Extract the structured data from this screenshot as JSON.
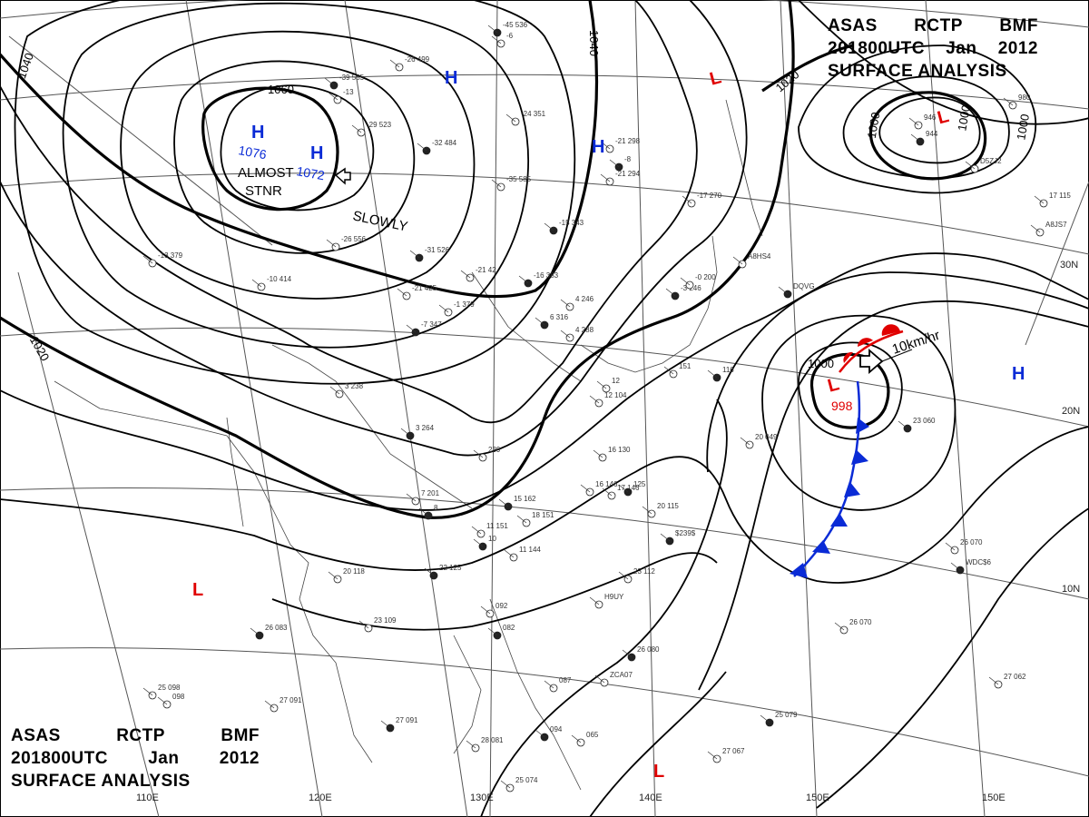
{
  "header": {
    "title_top_right": {
      "line1": [
        "ASAS",
        "RCTP",
        "BMF"
      ],
      "line2": [
        "201800UTC",
        "Jan",
        "2012"
      ],
      "line3": "SURFACE ANALYSIS"
    },
    "title_bottom_left": {
      "line1": [
        "ASAS",
        "RCTP",
        "BMF"
      ],
      "line2": [
        "201800UTC",
        "Jan",
        "2012"
      ],
      "line3": "SURFACE ANALYSIS"
    }
  },
  "grid": {
    "longitude_labels": [
      "110E",
      "120E",
      "130E",
      "140E",
      "150E"
    ],
    "latitude_labels": [
      "30N",
      "20N",
      "10N"
    ]
  },
  "isobars": {
    "labels": [
      "1060",
      "1040",
      "1040",
      "1020",
      "1020",
      "1000",
      "1000",
      "1000",
      "1000"
    ]
  },
  "pressure_centers": {
    "highs": [
      {
        "symbol": "H",
        "value": "1076"
      },
      {
        "symbol": "H",
        "value": "1072"
      },
      {
        "symbol": "H",
        "value": ""
      },
      {
        "symbol": "H",
        "value": ""
      },
      {
        "symbol": "H",
        "value": ""
      }
    ],
    "lows": [
      {
        "symbol": "L",
        "value": ""
      },
      {
        "symbol": "L",
        "value": ""
      },
      {
        "symbol": "L",
        "value": "998"
      },
      {
        "symbol": "L",
        "value": ""
      },
      {
        "symbol": "L",
        "value": ""
      }
    ]
  },
  "annotations": {
    "almost_stnr": "ALMOST\nSTNR",
    "almost": "ALMOST",
    "stnr": "STNR",
    "slowly": "SLOWLY",
    "speed": "10km/hr"
  },
  "stations": [
    "-45 536",
    "-6",
    "-26 499",
    "-39 585",
    "-13",
    "-29 523",
    "-32 484",
    "-24 351",
    "-21 298",
    "-8",
    "-21 294",
    "-17 270",
    "-15 343",
    "-35 585",
    "-26 556",
    "-31 526",
    "-21 425",
    "-21 42",
    "-16 383",
    "-13 379",
    "-10 414",
    "-7 347",
    "-1 379",
    "4 246",
    "6 316",
    "4 288",
    "3 238",
    "3 264",
    "239",
    "7 201",
    "8",
    "16 130",
    "16 146",
    "15 162",
    "17 146",
    "18 151",
    "125",
    "20 115",
    "11 151",
    "10",
    "11 144",
    "20 118",
    "22 125",
    "23 109",
    "23 112",
    "26 083",
    "27 091",
    "25 098",
    "27 091",
    "28 081",
    "25 074",
    "26 080",
    "26 070",
    "27 062",
    "25 079",
    "27 067",
    "20 049",
    "23 060",
    "26 070",
    "17 115",
    "-3 246",
    "-0 200",
    "A8HS4",
    "DQVG",
    "ZCA07",
    "H9UY",
    "WDC$6",
    "A8JS7",
    "D5ZJ2",
    "$239$",
    "098",
    "087",
    "082",
    "092",
    "065",
    "094",
    "12 104",
    "12",
    "116",
    "151",
    "946",
    "944",
    "980"
  ]
}
